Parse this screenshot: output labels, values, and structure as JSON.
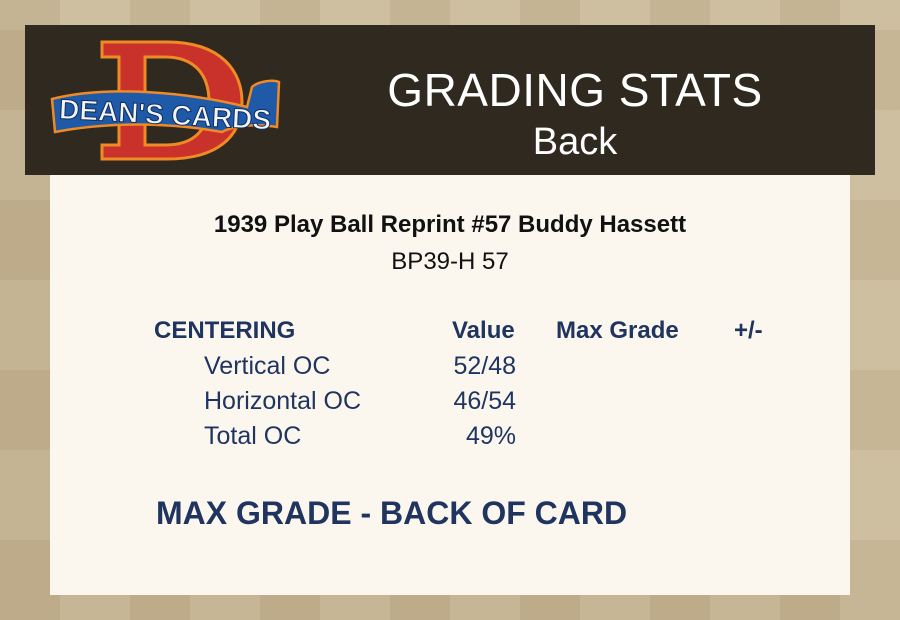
{
  "logo": {
    "text": "DEAN'S CARDS",
    "letter": "D"
  },
  "header": {
    "title": "GRADING STATS",
    "subtitle": "Back"
  },
  "card": {
    "name": "1939 Play Ball Reprint #57 Buddy Hassett",
    "code": "BP39-H 57"
  },
  "table": {
    "headers": {
      "section": "CENTERING",
      "value": "Value",
      "max_grade": "Max Grade",
      "diff": "+/-"
    },
    "rows": [
      {
        "label": "Vertical OC",
        "value": "52/48"
      },
      {
        "label": "Horizontal OC",
        "value": "46/54"
      },
      {
        "label": "Total OC",
        "value": "49%"
      }
    ]
  },
  "footer": {
    "max_grade_label": "MAX GRADE - BACK OF CARD"
  },
  "colors": {
    "header_bg": "#2f2920",
    "panel_bg": "#fcf7ee",
    "text_navy": "#1f3560",
    "logo_red": "#c8322a",
    "logo_blue": "#1e5aa8"
  }
}
